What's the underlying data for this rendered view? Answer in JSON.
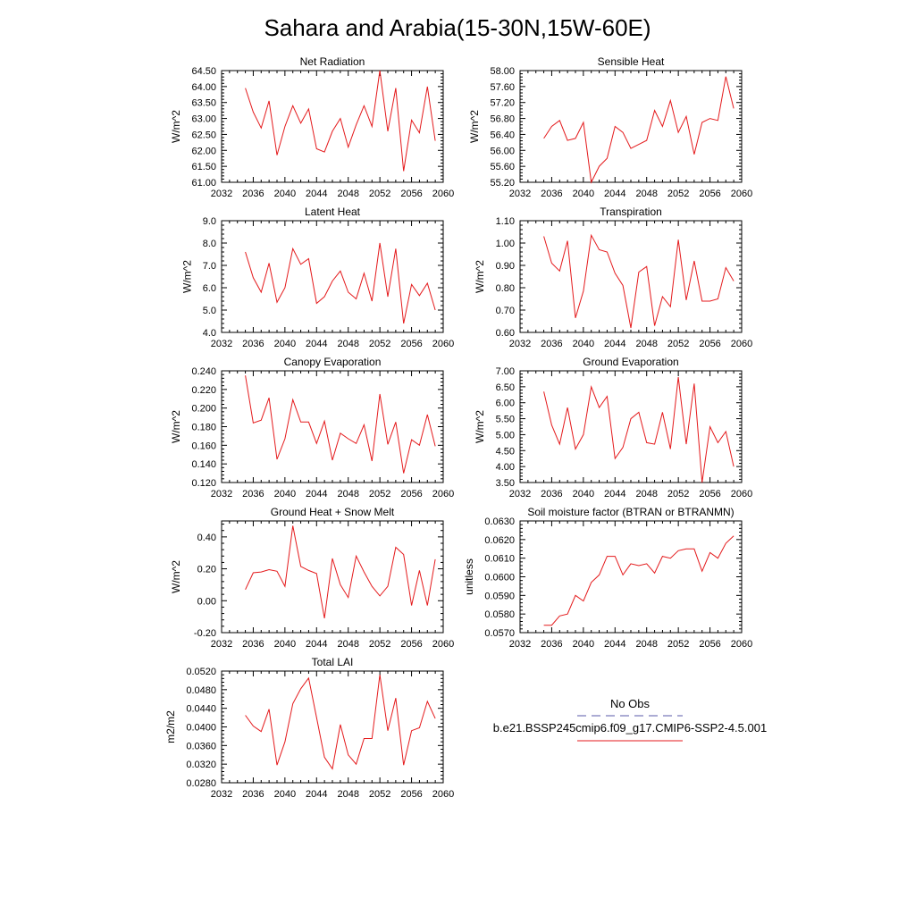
{
  "figure_title": "Sahara and Arabia(15-30N,15W-60E)",
  "legend": {
    "obs_label": "No Obs",
    "obs_color": "#5a5aa8",
    "case_label": "b.e21.BSSP245cmip6.f09_g17.CMIP6-SSP2-4.5.001",
    "case_color": "#e41a1c"
  },
  "chart_data": [
    {
      "type": "line",
      "title": "Net Radiation",
      "ylabel": "W/m^2",
      "xlim": [
        2032,
        2060
      ],
      "xticks": [
        "2032",
        "2036",
        "2040",
        "2044",
        "2048",
        "2052",
        "2056",
        "2060"
      ],
      "ylim": [
        61.0,
        64.5
      ],
      "yticks": [
        "61.00",
        "61.50",
        "62.00",
        "62.50",
        "63.00",
        "63.50",
        "64.00",
        "64.50"
      ],
      "series": [
        {
          "x": [
            2035,
            2036,
            2037,
            2038,
            2039,
            2040,
            2041,
            2042,
            2043,
            2044,
            2045,
            2046,
            2047,
            2048,
            2049,
            2050,
            2051,
            2052,
            2053,
            2054,
            2055,
            2056,
            2057,
            2058,
            2059
          ],
          "y": [
            63.95,
            63.2,
            62.7,
            63.55,
            61.85,
            62.75,
            63.4,
            62.85,
            63.3,
            62.05,
            61.95,
            62.6,
            63.0,
            62.1,
            62.8,
            63.4,
            62.75,
            64.5,
            62.6,
            63.95,
            61.35,
            62.95,
            62.55,
            64.0,
            62.3
          ]
        }
      ]
    },
    {
      "type": "line",
      "title": "Sensible Heat",
      "ylabel": "W/m^2",
      "xlim": [
        2032,
        2060
      ],
      "xticks": [
        "2032",
        "2036",
        "2040",
        "2044",
        "2048",
        "2052",
        "2056",
        "2060"
      ],
      "ylim": [
        55.2,
        58.0
      ],
      "yticks": [
        "55.20",
        "55.60",
        "56.00",
        "56.40",
        "56.80",
        "57.20",
        "57.60",
        "58.00"
      ],
      "series": [
        {
          "x": [
            2035,
            2036,
            2037,
            2038,
            2039,
            2040,
            2041,
            2042,
            2043,
            2044,
            2045,
            2046,
            2047,
            2048,
            2049,
            2050,
            2051,
            2052,
            2053,
            2054,
            2055,
            2056,
            2057,
            2058,
            2059
          ],
          "y": [
            56.3,
            56.6,
            56.75,
            56.25,
            56.3,
            56.7,
            55.2,
            55.6,
            55.8,
            56.6,
            56.45,
            56.05,
            56.15,
            56.25,
            57.0,
            56.6,
            57.25,
            56.45,
            56.85,
            55.9,
            56.7,
            56.8,
            56.75,
            57.85,
            57.05
          ]
        }
      ]
    },
    {
      "type": "line",
      "title": "Latent Heat",
      "ylabel": "W/m^2",
      "xlim": [
        2032,
        2060
      ],
      "xticks": [
        "2032",
        "2036",
        "2040",
        "2044",
        "2048",
        "2052",
        "2056",
        "2060"
      ],
      "ylim": [
        4.0,
        9.0
      ],
      "yticks": [
        "4.0",
        "5.0",
        "6.0",
        "7.0",
        "8.0",
        "9.0"
      ],
      "series": [
        {
          "x": [
            2035,
            2036,
            2037,
            2038,
            2039,
            2040,
            2041,
            2042,
            2043,
            2044,
            2045,
            2046,
            2047,
            2048,
            2049,
            2050,
            2051,
            2052,
            2053,
            2054,
            2055,
            2056,
            2057,
            2058,
            2059
          ],
          "y": [
            7.6,
            6.45,
            5.8,
            7.1,
            5.35,
            6.0,
            7.75,
            7.05,
            7.3,
            5.3,
            5.6,
            6.3,
            6.75,
            5.8,
            5.5,
            6.65,
            5.4,
            8.0,
            5.6,
            7.75,
            4.4,
            6.15,
            5.65,
            6.2,
            5.0
          ]
        }
      ]
    },
    {
      "type": "line",
      "title": "Transpiration",
      "ylabel": "W/m^2",
      "xlim": [
        2032,
        2060
      ],
      "xticks": [
        "2032",
        "2036",
        "2040",
        "2044",
        "2048",
        "2052",
        "2056",
        "2060"
      ],
      "ylim": [
        0.6,
        1.1
      ],
      "yticks": [
        "0.60",
        "0.70",
        "0.80",
        "0.90",
        "1.00",
        "1.10"
      ],
      "series": [
        {
          "x": [
            2035,
            2036,
            2037,
            2038,
            2039,
            2040,
            2041,
            2042,
            2043,
            2044,
            2045,
            2046,
            2047,
            2048,
            2049,
            2050,
            2051,
            2052,
            2053,
            2054,
            2055,
            2056,
            2057,
            2058,
            2059
          ],
          "y": [
            1.03,
            0.91,
            0.875,
            1.01,
            0.665,
            0.785,
            1.035,
            0.97,
            0.96,
            0.865,
            0.81,
            0.62,
            0.87,
            0.895,
            0.63,
            0.76,
            0.715,
            1.015,
            0.745,
            0.92,
            0.74,
            0.74,
            0.75,
            0.89,
            0.83
          ]
        }
      ]
    },
    {
      "type": "line",
      "title": "Canopy Evaporation",
      "ylabel": "W/m^2",
      "xlim": [
        2032,
        2060
      ],
      "xticks": [
        "2032",
        "2036",
        "2040",
        "2044",
        "2048",
        "2052",
        "2056",
        "2060"
      ],
      "ylim": [
        0.12,
        0.24
      ],
      "yticks": [
        "0.120",
        "0.140",
        "0.160",
        "0.180",
        "0.200",
        "0.220",
        "0.240"
      ],
      "series": [
        {
          "x": [
            2035,
            2036,
            2037,
            2038,
            2039,
            2040,
            2041,
            2042,
            2043,
            2044,
            2045,
            2046,
            2047,
            2048,
            2049,
            2050,
            2051,
            2052,
            2053,
            2054,
            2055,
            2056,
            2057,
            2058,
            2059
          ],
          "y": [
            0.235,
            0.184,
            0.187,
            0.211,
            0.145,
            0.167,
            0.209,
            0.185,
            0.185,
            0.162,
            0.186,
            0.144,
            0.173,
            0.167,
            0.162,
            0.182,
            0.143,
            0.215,
            0.161,
            0.185,
            0.13,
            0.166,
            0.16,
            0.193,
            0.159
          ]
        }
      ]
    },
    {
      "type": "line",
      "title": "Ground Evaporation",
      "ylabel": "W/m^2",
      "xlim": [
        2032,
        2060
      ],
      "xticks": [
        "2032",
        "2036",
        "2040",
        "2044",
        "2048",
        "2052",
        "2056",
        "2060"
      ],
      "ylim": [
        3.5,
        7.0
      ],
      "yticks": [
        "3.50",
        "4.00",
        "4.50",
        "5.00",
        "5.50",
        "6.00",
        "6.50",
        "7.00"
      ],
      "series": [
        {
          "x": [
            2035,
            2036,
            2037,
            2038,
            2039,
            2040,
            2041,
            2042,
            2043,
            2044,
            2045,
            2046,
            2047,
            2048,
            2049,
            2050,
            2051,
            2052,
            2053,
            2054,
            2055,
            2056,
            2057,
            2058,
            2059
          ],
          "y": [
            6.35,
            5.3,
            4.7,
            5.85,
            4.55,
            5.0,
            6.5,
            5.85,
            6.2,
            4.25,
            4.6,
            5.5,
            5.7,
            4.75,
            4.7,
            5.7,
            4.55,
            6.8,
            4.7,
            6.6,
            3.5,
            5.25,
            4.75,
            5.1,
            4.0
          ]
        }
      ]
    },
    {
      "type": "line",
      "title": "Ground Heat + Snow Melt",
      "ylabel": "W/m^2",
      "xlim": [
        2032,
        2060
      ],
      "xticks": [
        "2032",
        "2036",
        "2040",
        "2044",
        "2048",
        "2052",
        "2056",
        "2060"
      ],
      "ylim": [
        -0.2,
        0.5
      ],
      "yticks": [
        "-0.20",
        "0.00",
        "0.20",
        "0.40"
      ],
      "series": [
        {
          "x": [
            2035,
            2036,
            2037,
            2038,
            2039,
            2040,
            2041,
            2042,
            2043,
            2044,
            2045,
            2046,
            2047,
            2048,
            2049,
            2050,
            2051,
            2052,
            2053,
            2054,
            2055,
            2056,
            2057,
            2058,
            2059
          ],
          "y": [
            0.07,
            0.175,
            0.18,
            0.195,
            0.185,
            0.09,
            0.47,
            0.215,
            0.19,
            0.17,
            -0.11,
            0.265,
            0.1,
            0.02,
            0.28,
            0.18,
            0.09,
            0.03,
            0.09,
            0.335,
            0.29,
            -0.03,
            0.19,
            -0.03,
            0.26
          ]
        }
      ]
    },
    {
      "type": "line",
      "title": "Soil moisture factor (BTRAN or BTRANMN)",
      "ylabel": "unitless",
      "xlim": [
        2032,
        2060
      ],
      "xticks": [
        "2032",
        "2036",
        "2040",
        "2044",
        "2048",
        "2052",
        "2056",
        "2060"
      ],
      "ylim": [
        0.057,
        0.063
      ],
      "yticks": [
        "0.0570",
        "0.0580",
        "0.0590",
        "0.0600",
        "0.0610",
        "0.0620",
        "0.0630"
      ],
      "series": [
        {
          "x": [
            2035,
            2036,
            2037,
            2038,
            2039,
            2040,
            2041,
            2042,
            2043,
            2044,
            2045,
            2046,
            2047,
            2048,
            2049,
            2050,
            2051,
            2052,
            2053,
            2054,
            2055,
            2056,
            2057,
            2058,
            2059
          ],
          "y": [
            0.0574,
            0.0574,
            0.0579,
            0.058,
            0.059,
            0.0587,
            0.0597,
            0.0601,
            0.0611,
            0.0611,
            0.0601,
            0.0607,
            0.0606,
            0.0607,
            0.0602,
            0.0611,
            0.061,
            0.0614,
            0.0615,
            0.0615,
            0.0603,
            0.0613,
            0.061,
            0.0618,
            0.0622
          ]
        }
      ]
    },
    {
      "type": "line",
      "title": "Total LAI",
      "ylabel": "m2/m2",
      "xlim": [
        2032,
        2060
      ],
      "xticks": [
        "2032",
        "2036",
        "2040",
        "2044",
        "2048",
        "2052",
        "2056",
        "2060"
      ],
      "ylim": [
        0.028,
        0.052
      ],
      "yticks": [
        "0.0280",
        "0.0320",
        "0.0360",
        "0.0400",
        "0.0440",
        "0.0480",
        "0.0520"
      ],
      "series": [
        {
          "x": [
            2035,
            2036,
            2037,
            2038,
            2039,
            2040,
            2041,
            2042,
            2043,
            2044,
            2045,
            2046,
            2047,
            2048,
            2049,
            2050,
            2051,
            2052,
            2053,
            2054,
            2055,
            2056,
            2057,
            2058,
            2059
          ],
          "y": [
            0.0425,
            0.0402,
            0.039,
            0.0438,
            0.0318,
            0.0368,
            0.045,
            0.0482,
            0.0505,
            0.042,
            0.0335,
            0.031,
            0.0405,
            0.034,
            0.032,
            0.0375,
            0.0375,
            0.0512,
            0.0392,
            0.0462,
            0.0318,
            0.0392,
            0.0398,
            0.0455,
            0.0418
          ]
        }
      ]
    }
  ]
}
